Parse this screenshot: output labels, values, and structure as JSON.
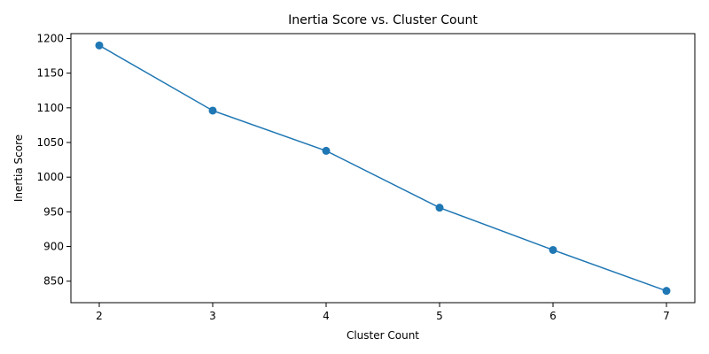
{
  "chart_data": {
    "type": "line",
    "title": "Inertia Score vs. Cluster Count",
    "xlabel": "Cluster Count",
    "ylabel": "Inertia Score",
    "x": [
      2,
      3,
      4,
      5,
      6,
      7
    ],
    "series": [
      {
        "values": [
          1190,
          1096,
          1038,
          956,
          895,
          836
        ]
      }
    ],
    "xlim": [
      1.75,
      7.25
    ],
    "ylim": [
      819,
      1207
    ],
    "xticks": [
      2,
      3,
      4,
      5,
      6,
      7
    ],
    "yticks": [
      850,
      900,
      950,
      1000,
      1050,
      1100,
      1150,
      1200
    ],
    "grid": false,
    "line_color": "#1f77b4",
    "marker": "circle"
  }
}
